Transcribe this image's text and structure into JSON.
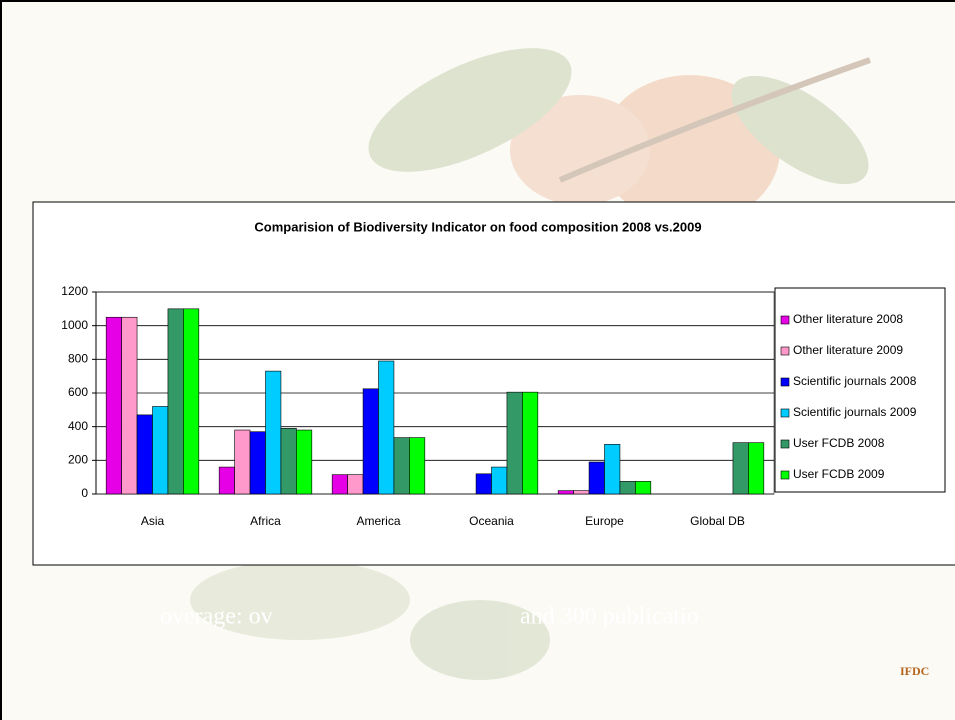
{
  "chart_data": {
    "type": "bar",
    "title": "Comparision of Biodiversity Indicator on food composition 2008 vs.2009",
    "categories": [
      "Asia",
      "Africa",
      "America",
      "Oceania",
      "Europe",
      "Global DB"
    ],
    "series": [
      {
        "name": "Other literature 2008",
        "color": "#e600e6",
        "values": [
          1050,
          160,
          115,
          0,
          20,
          0
        ]
      },
      {
        "name": "Other literature 2009",
        "color": "#ff99cc",
        "values": [
          1050,
          380,
          115,
          0,
          20,
          0
        ]
      },
      {
        "name": "Scientific journals 2008",
        "color": "#0000ff",
        "values": [
          470,
          370,
          625,
          120,
          190,
          0
        ]
      },
      {
        "name": "Scientific journals 2009",
        "color": "#00ccff",
        "values": [
          520,
          730,
          790,
          160,
          295,
          0
        ]
      },
      {
        "name": "User FCDB 2008",
        "color": "#339966",
        "values": [
          1100,
          390,
          335,
          605,
          75,
          305
        ]
      },
      {
        "name": "User FCDB 2009",
        "color": "#00ff00",
        "values": [
          1100,
          380,
          335,
          605,
          75,
          305
        ]
      }
    ],
    "ylim": [
      0,
      1200
    ],
    "yticks": [
      0,
      200,
      400,
      600,
      800,
      1000,
      1200
    ],
    "grid": true,
    "legend": "right",
    "slide_text": [
      "overage: ov",
      "and 300 publicatio"
    ],
    "logo": "IFDC"
  }
}
